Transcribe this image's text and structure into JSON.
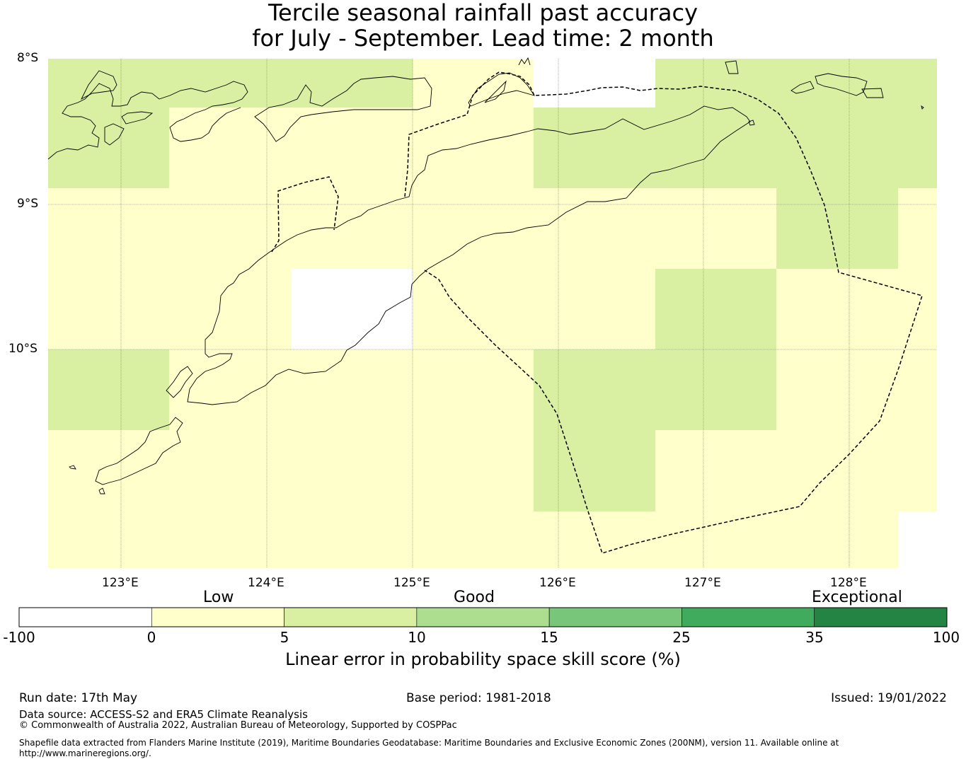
{
  "title": {
    "line1": "Tercile seasonal rainfall past accuracy",
    "line2": "for July - September. Lead time: 2 month"
  },
  "map": {
    "lat_labels": [
      "8°S",
      "9°S",
      "10°S"
    ],
    "lon_labels": [
      "123°E",
      "124°E",
      "125°E",
      "126°E",
      "127°E",
      "128°E"
    ],
    "extent": {
      "lon_min": 122.5,
      "lon_max": 128.6,
      "lat_min": -11.5,
      "lat_max": -8.0
    },
    "grid_resolution_deg": 0.833,
    "colors": {
      "low": "#ffffcc",
      "good_low": "#d9f0a3",
      "missing": "#ffffff"
    }
  },
  "colorbar": {
    "category_labels": [
      "Low",
      "Good",
      "Exceptional"
    ],
    "ticks": [
      "-100",
      "0",
      "5",
      "10",
      "15",
      "25",
      "35",
      "100"
    ],
    "colors": [
      "#ffffff",
      "#ffffcc",
      "#d9f0a3",
      "#addd8e",
      "#78c679",
      "#41ab5d",
      "#238443"
    ],
    "title": "Linear error in probability space skill score (%)"
  },
  "footer": {
    "run_date": "Run date: 17th May",
    "base_period": "Base period: 1981-2018",
    "issued": "Issued: 19/01/2022",
    "data_source": "Data source: ACCESS-S2 and ERA5 Climate Reanalysis",
    "copyright": "© Commonwealth of Australia 2022, Australian Bureau of Meteorology, Supported by COSPPac",
    "shapefile_line1": "Shapefile data extracted from Flanders Marine Institute (2019), Maritime Boundaries Geodatabase: Maritime Boundaries and Exclusive Economic Zones (200NM), version 11. Available online at",
    "shapefile_line2": "http://www.marineregions.org/."
  }
}
